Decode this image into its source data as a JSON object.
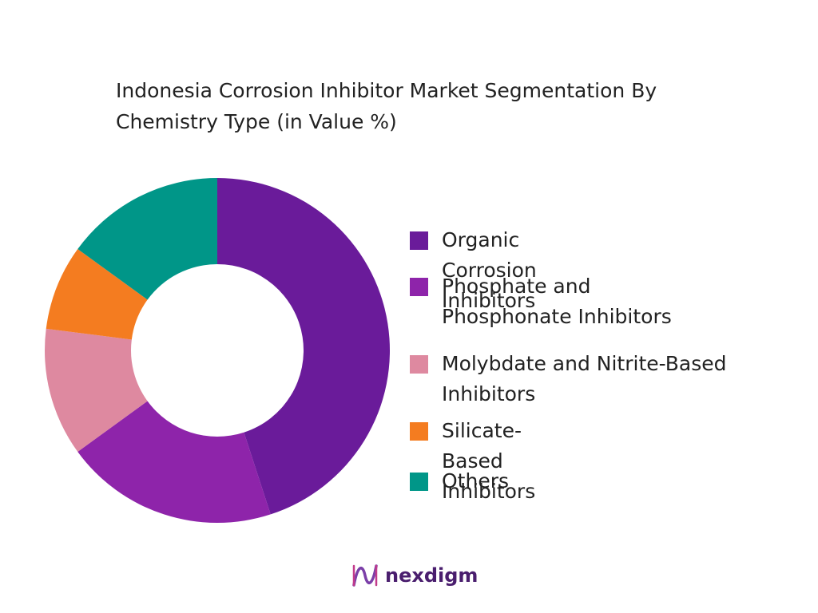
{
  "chart_data": {
    "type": "donut",
    "title": "Indonesia Corrosion Inhibitor Market Segmentation By Chemistry Type (in Value %)",
    "categories": [
      "Organic Corrosion Inhibitors",
      "Phosphate and Phosphonate Inhibitors",
      "Molybdate and Nitrite-Based Inhibitors",
      "Silicate-Based Inhibitors",
      "Others"
    ],
    "values": [
      45,
      20,
      12,
      8,
      15
    ],
    "colors": [
      "#6a1b9a",
      "#8e24aa",
      "#de89a0",
      "#f47c20",
      "#009688"
    ],
    "legend": "right"
  },
  "brand": "nexdigm"
}
